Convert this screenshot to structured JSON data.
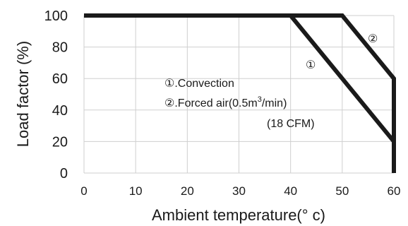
{
  "chart_data": {
    "type": "line",
    "xlabel": "Ambient temperature(° c)",
    "ylabel": "Load factor (%)",
    "xlim": [
      0,
      60
    ],
    "ylim": [
      0,
      100
    ],
    "xticks": [
      0,
      10,
      20,
      30,
      40,
      50,
      60
    ],
    "yticks": [
      0,
      20,
      40,
      60,
      80,
      100
    ],
    "grid": true,
    "series": [
      {
        "name": "①",
        "x": [
          0,
          40,
          60,
          60
        ],
        "y": [
          100,
          100,
          20,
          0
        ]
      },
      {
        "name": "②",
        "x": [
          0,
          50,
          60,
          60
        ],
        "y": [
          100,
          100,
          60,
          0
        ]
      }
    ],
    "legend": {
      "placement": "center",
      "entries": [
        {
          "marker": "①",
          "text": ".Convection"
        },
        {
          "marker": "②",
          "text": ".Forced air(0.5m",
          "superscript": "3",
          "suffix": "/min)"
        },
        {
          "text": "(18 CFM)"
        }
      ]
    },
    "line_color": "#1a1a1a"
  }
}
